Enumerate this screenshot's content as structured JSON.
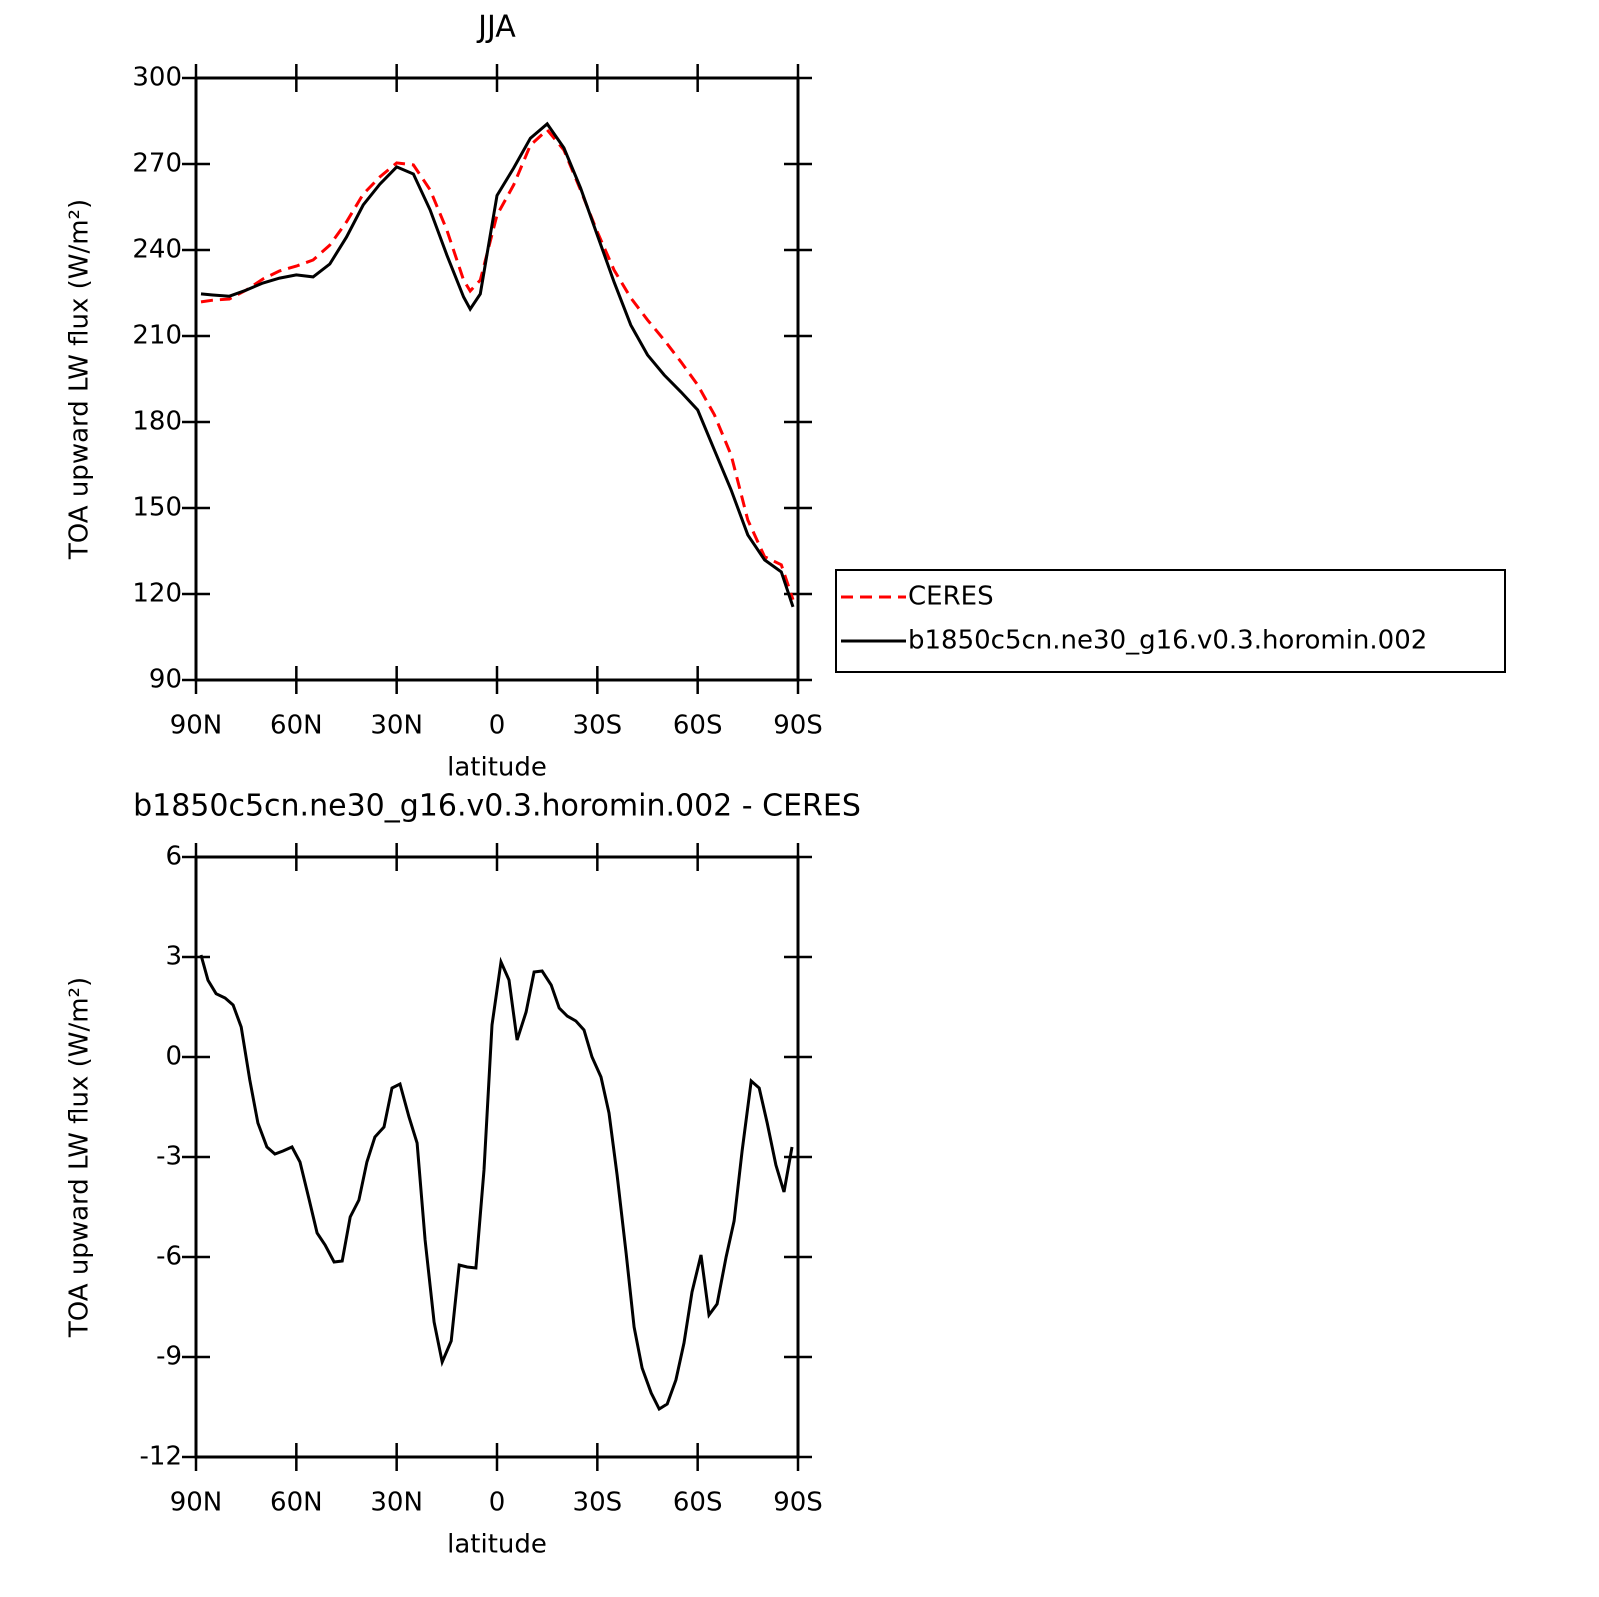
{
  "chart_data": [
    {
      "type": "line",
      "title": "JJA",
      "xlabel": "latitude",
      "ylabel": "TOA upward LW flux (W/m²)",
      "xlim": [
        90,
        -90
      ],
      "ylim": [
        90,
        300
      ],
      "xticks": [
        {
          "value": 90,
          "label": "90N"
        },
        {
          "value": 60,
          "label": "60N"
        },
        {
          "value": 30,
          "label": "30N"
        },
        0,
        {
          "value": -30,
          "label": "30S"
        },
        {
          "value": -60,
          "label": "60S"
        },
        {
          "value": -90,
          "label": "90S"
        }
      ],
      "yticks": [
        90,
        120,
        150,
        180,
        210,
        240,
        270,
        300
      ],
      "legend": "right",
      "x": [
        88.5,
        85,
        80,
        75,
        70,
        65,
        60,
        55,
        50,
        45,
        40,
        35,
        30,
        25,
        20,
        15,
        10,
        8,
        5,
        0,
        -5,
        -10,
        -15,
        -20,
        -25,
        -30,
        -35,
        -40,
        -45,
        -50,
        -55,
        -60,
        -65,
        -70,
        -75,
        -80,
        -85,
        -88.5
      ],
      "series": [
        {
          "name": "CERES",
          "color": "#ff0000",
          "linestyle": "dashed",
          "values": [
            221.9,
            222.5,
            222.9,
            226,
            229.9,
            232.7,
            234.4,
            236.5,
            241.7,
            249.8,
            259.5,
            265.5,
            270.4,
            269.7,
            261,
            247,
            229.5,
            225.7,
            229.5,
            252.2,
            262.7,
            276.6,
            281.9,
            274.9,
            260.9,
            246.3,
            233,
            223.3,
            215.6,
            208.6,
            201,
            192.9,
            182.5,
            168.5,
            145.8,
            133,
            130.2,
            118
          ]
        },
        {
          "name": "b1850c5cn.ne30_g16.v0.3.horomin.002",
          "color": "#000000",
          "linestyle": "solid",
          "values": [
            224.7,
            224.3,
            223.9,
            226,
            228.5,
            230.2,
            231.3,
            230.6,
            235.1,
            244.5,
            255.7,
            263,
            269,
            266.5,
            254,
            238.3,
            223.6,
            219.4,
            224.7,
            259,
            268.6,
            279,
            284,
            275.6,
            261.6,
            245.2,
            228.8,
            213.8,
            203.4,
            196.4,
            190.5,
            184.2,
            170.2,
            156.3,
            140.6,
            131.9,
            127.7,
            115.5
          ]
        }
      ]
    },
    {
      "type": "line",
      "title": "b1850c5cn.ne30_g16.v0.3.horomin.002 - CERES",
      "xlabel": "latitude",
      "ylabel": "TOA upward LW flux (W/m²)",
      "xlim": [
        90,
        -90
      ],
      "ylim": [
        -12,
        6
      ],
      "xticks": [
        {
          "value": 90,
          "label": "90N"
        },
        {
          "value": 60,
          "label": "60N"
        },
        {
          "value": 30,
          "label": "30N"
        },
        0,
        {
          "value": -30,
          "label": "30S"
        },
        {
          "value": -60,
          "label": "60S"
        },
        {
          "value": -90,
          "label": "90S"
        }
      ],
      "yticks": [
        -12,
        -9,
        -6,
        -3,
        0,
        3,
        6
      ],
      "x": [
        88.5,
        86.4,
        84,
        81.3,
        78.9,
        76.5,
        73.9,
        71.5,
        68.8,
        66.4,
        64,
        61.3,
        58.9,
        56.2,
        53.8,
        51.4,
        48.7,
        46.3,
        43.9,
        41.3,
        38.9,
        36.5,
        33.8,
        31.4,
        29,
        26.3,
        23.9,
        21.5,
        18.8,
        16.4,
        13.7,
        11.3,
        8.9,
        6.3,
        3.9,
        1.5,
        -1.2,
        -3.6,
        -6,
        -8.7,
        -11.1,
        -13.5,
        -16.2,
        -18.6,
        -21,
        -23.6,
        -26,
        -28.4,
        -31.1,
        -33.5,
        -35.9,
        -38.6,
        -41,
        -43.4,
        -46.1,
        -48.5,
        -50.9,
        -53.5,
        -55.9,
        -58.3,
        -61,
        -63.4,
        -65.8,
        -68.5,
        -70.9,
        -73.3,
        -76,
        -78.4,
        -80.8,
        -83.4,
        -85.8,
        -88.2
      ],
      "series": [
        {
          "name": null,
          "color": "#000000",
          "linestyle": "solid",
          "values": [
            3.06,
            2.3,
            1.9,
            1.77,
            1.56,
            0.9,
            -0.69,
            -1.98,
            -2.7,
            -2.91,
            -2.82,
            -2.7,
            -3.15,
            -4.26,
            -5.28,
            -5.64,
            -6.15,
            -6.12,
            -4.8,
            -4.29,
            -3.15,
            -2.4,
            -2.1,
            -0.93,
            -0.81,
            -1.8,
            -2.58,
            -5.49,
            -7.95,
            -9.15,
            -8.52,
            -6.24,
            -6.3,
            -6.33,
            -3.39,
            0.96,
            2.85,
            2.31,
            0.51,
            1.35,
            2.55,
            2.58,
            2.16,
            1.47,
            1.23,
            1.08,
            0.81,
            0,
            -0.6,
            -1.68,
            -3.54,
            -5.88,
            -8.1,
            -9.33,
            -10.08,
            -10.56,
            -10.41,
            -9.69,
            -8.58,
            -7.05,
            -5.94,
            -7.74,
            -7.41,
            -6,
            -4.92,
            -2.82,
            -0.72,
            -0.93,
            -1.98,
            -3.24,
            -4.05,
            -2.7
          ]
        }
      ]
    }
  ]
}
